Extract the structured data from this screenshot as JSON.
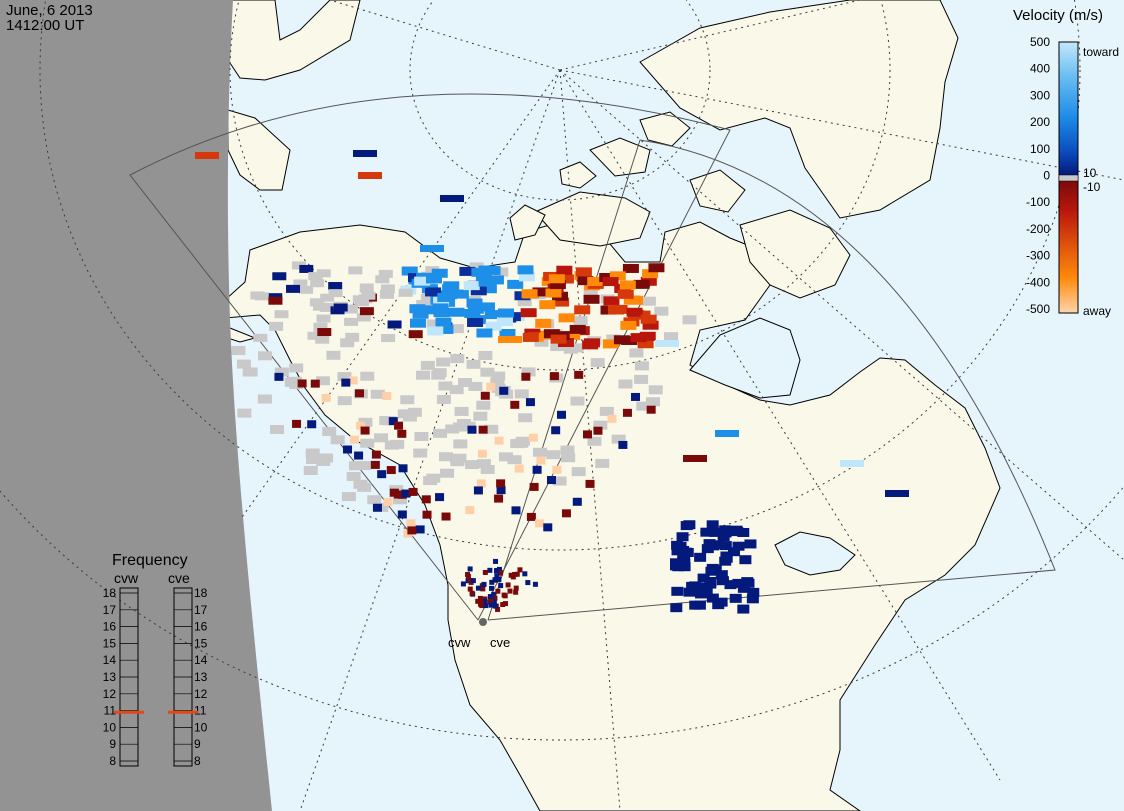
{
  "header": {
    "date": "June, 6 2013",
    "time": "1412:00 UT"
  },
  "radars": [
    {
      "code": "cvw",
      "frequency_mhz": 10.9
    },
    {
      "code": "cve",
      "frequency_mhz": 10.9
    }
  ],
  "velocity_scale": {
    "title": "Velocity (m/s)",
    "ticks": [
      "500",
      "400",
      "300",
      "200",
      "100",
      "0",
      "-100",
      "-200",
      "-300",
      "-400",
      "-500"
    ],
    "threshold_pos": "10",
    "threshold_neg": "-10",
    "toward_label": "toward",
    "away_label": "away",
    "colors": {
      "toward_max": "#bfe6fb",
      "toward_mid": "#1e8fe8",
      "toward_low": "#0a2f9a",
      "near_zero_pos": "#04197c",
      "near_zero_neg": "#7a0a0a",
      "away_mid": "#d5380a",
      "away_high": "#ff8a0a",
      "away_max": "#ffd0a8",
      "ground_scatter": "#c9c9c9"
    }
  },
  "frequency_panel": {
    "title": "Frequency",
    "left_label": "cvw",
    "right_label": "cve",
    "ticks": [
      "18",
      "17",
      "16",
      "15",
      "14",
      "13",
      "12",
      "11",
      "10",
      "9",
      "8"
    ],
    "marker_color": "#e0471a"
  },
  "map_colors": {
    "night": "#939393",
    "ocean": "#e6f4fc",
    "land": "#faf8e9",
    "coast": "#000000",
    "grid": "#3b3b3b",
    "fov": "#555555"
  }
}
